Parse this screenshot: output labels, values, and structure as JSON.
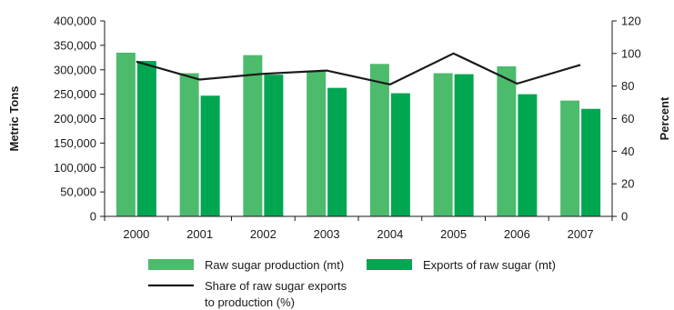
{
  "chart_data": {
    "type": "bar",
    "categories": [
      "2000",
      "2001",
      "2002",
      "2003",
      "2004",
      "2005",
      "2006",
      "2007"
    ],
    "series": [
      {
        "name": "Raw sugar production (mt)",
        "kind": "bar",
        "axis": "left",
        "color": "#4cbb6c",
        "values": [
          335000,
          293000,
          330000,
          297000,
          312000,
          293000,
          307000,
          237000
        ]
      },
      {
        "name": "Exports of raw sugar (mt)",
        "kind": "bar",
        "axis": "left",
        "color": "#00a650",
        "values": [
          318000,
          247000,
          290000,
          263000,
          252000,
          291000,
          250000,
          220000
        ]
      },
      {
        "name": "Share of raw sugar exports to production (%)",
        "name_lines": [
          "Share of raw sugar exports",
          "to production (%)"
        ],
        "kind": "line",
        "axis": "right",
        "color": "#1a1a1a",
        "values": [
          95,
          84,
          87.5,
          89.5,
          81,
          100,
          81.5,
          93
        ]
      }
    ],
    "ylabel": "Metric Tons",
    "ylabel_right": "Percent",
    "ylim": [
      0,
      400000
    ],
    "ylim_right": [
      0,
      120
    ],
    "yticks": [
      0,
      50000,
      100000,
      150000,
      200000,
      250000,
      300000,
      350000,
      400000
    ],
    "yticks_labels": [
      "0",
      "50,000",
      "100,000",
      "150,000",
      "200,000",
      "250,000",
      "300,000",
      "350,000",
      "400,000"
    ],
    "yticks_right": [
      "0",
      "20",
      "40",
      "60",
      "80",
      "100",
      "120"
    ],
    "grid": false,
    "legend_position": "bottom"
  }
}
